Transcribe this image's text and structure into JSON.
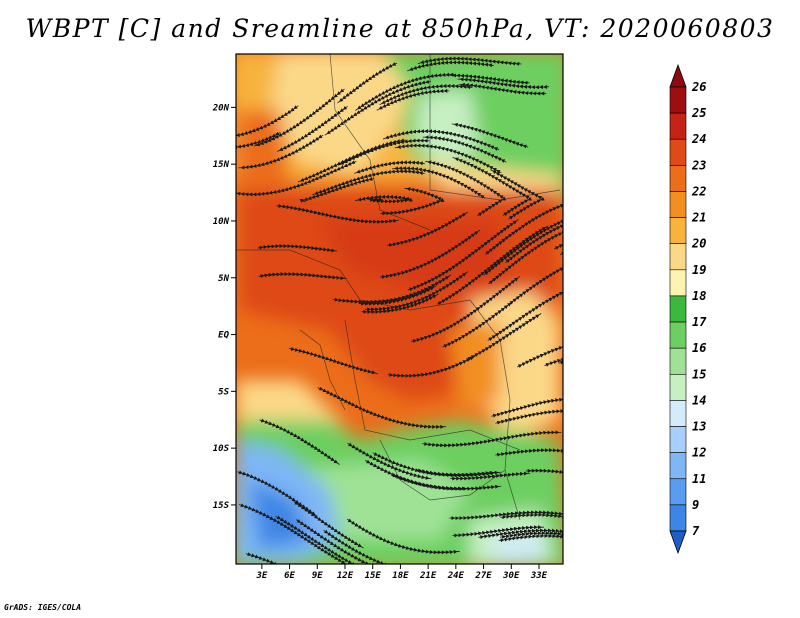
{
  "title": "WBPT [C] and Sreamline at 850hPa, VT: 2020060803",
  "credit": "GrADS: IGES/COLA",
  "map": {
    "lat_labels": [
      "20N",
      "15N",
      "10N",
      "5N",
      "EQ",
      "5S",
      "10S",
      "15S"
    ],
    "lat_values": [
      20,
      15,
      10,
      5,
      0,
      -5,
      -10,
      -15
    ],
    "lon_labels": [
      "3E",
      "6E",
      "9E",
      "12E",
      "15E",
      "18E",
      "21E",
      "24E",
      "27E",
      "30E",
      "33E"
    ],
    "lon_values": [
      3,
      6,
      9,
      12,
      15,
      18,
      21,
      24,
      27,
      30,
      33
    ]
  },
  "colorbar": {
    "labels": [
      "7",
      "9",
      "11",
      "12",
      "13",
      "14",
      "15",
      "16",
      "17",
      "18",
      "19",
      "20",
      "21",
      "22",
      "23",
      "24",
      "25",
      "26"
    ],
    "colors": [
      "#2c6fd6",
      "#3c86e6",
      "#5a9cf0",
      "#7eb6f6",
      "#a7cff9",
      "#d2ecfb",
      "#c6efc2",
      "#9fe296",
      "#6dcf61",
      "#3bb93c",
      "#fdf3b3",
      "#fbd888",
      "#f7b33c",
      "#f28f21",
      "#ec6d1a",
      "#de4a18",
      "#c52315",
      "#9e0e10"
    ],
    "top_color": "#8c0b10",
    "bottom_color": "#1f5ec8"
  },
  "colors": {
    "frame": "#000000",
    "streamline": "#1a1a1a",
    "border": "#222222"
  }
}
